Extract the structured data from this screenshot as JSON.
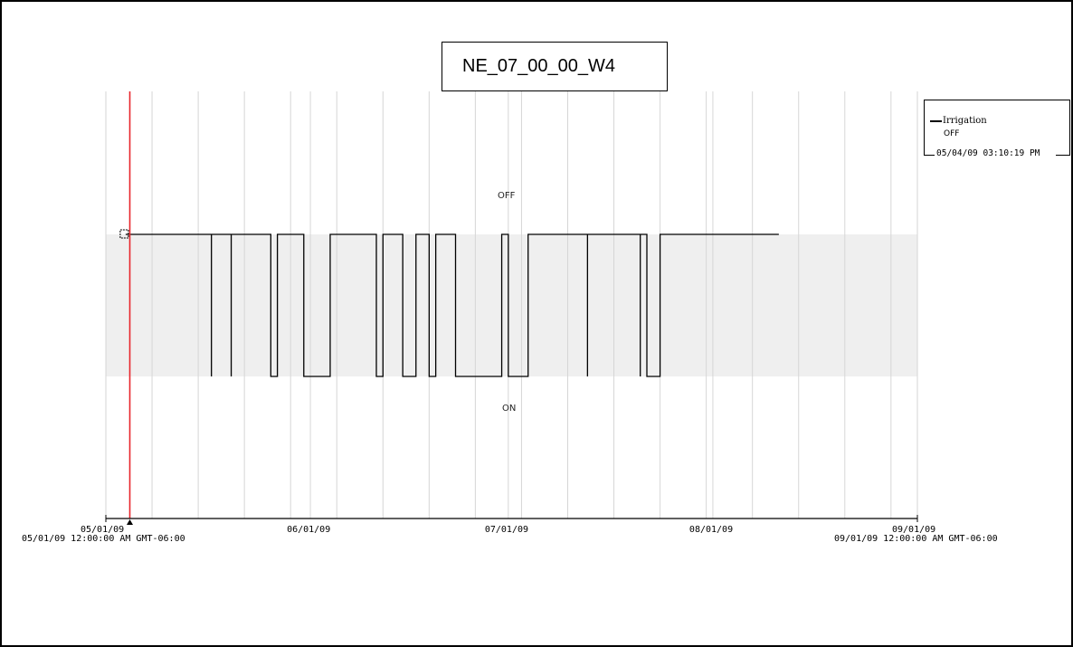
{
  "title": "NE_07_00_00_W4",
  "legend": {
    "series_name": "Irrigation",
    "status": "OFF",
    "timestamp": "05/04/09 03:10:19 PM"
  },
  "state_labels": {
    "off": "OFF",
    "on": "ON"
  },
  "axis": {
    "start_full": "05/01/09 12:00:00 AM GMT-06:00",
    "end_full": "09/01/09 12:00:00 AM GMT-06:00"
  },
  "colors": {
    "series": "#000000",
    "cursor": "#e8262c",
    "band": "#efefef",
    "grid": "#d6d6d6",
    "axis": "#000000"
  },
  "chart_data": {
    "type": "line",
    "step": true,
    "x_axis": {
      "type": "time",
      "min": "2009-05-01",
      "max": "2009-09-01",
      "tick_labels": [
        "05/01/09",
        "06/01/09",
        "07/01/09",
        "08/01/09",
        "09/01/09"
      ]
    },
    "y_axis": {
      "type": "category",
      "categories": [
        "ON",
        "OFF"
      ]
    },
    "cursor_time": "2009-05-04T15:10:19",
    "grid": true,
    "legend_position": "right",
    "series": [
      {
        "name": "Irrigation",
        "points": [
          [
            "2009-05-04",
            "OFF"
          ],
          [
            "2009-05-17",
            "ON"
          ],
          [
            "2009-05-17",
            "OFF"
          ],
          [
            "2009-05-20",
            "ON"
          ],
          [
            "2009-05-20",
            "OFF"
          ],
          [
            "2009-05-26",
            "ON"
          ],
          [
            "2009-05-27",
            "OFF"
          ],
          [
            "2009-05-31",
            "ON"
          ],
          [
            "2009-06-04",
            "OFF"
          ],
          [
            "2009-06-11",
            "ON"
          ],
          [
            "2009-06-12",
            "OFF"
          ],
          [
            "2009-06-15",
            "ON"
          ],
          [
            "2009-06-17",
            "OFF"
          ],
          [
            "2009-06-19",
            "ON"
          ],
          [
            "2009-06-20",
            "OFF"
          ],
          [
            "2009-06-23",
            "ON"
          ],
          [
            "2009-06-30",
            "OFF"
          ],
          [
            "2009-07-01",
            "ON"
          ],
          [
            "2009-07-04",
            "OFF"
          ],
          [
            "2009-07-13",
            "ON"
          ],
          [
            "2009-07-13",
            "OFF"
          ],
          [
            "2009-07-21",
            "ON"
          ],
          [
            "2009-07-21",
            "OFF"
          ],
          [
            "2009-07-22",
            "ON"
          ],
          [
            "2009-07-24",
            "OFF"
          ],
          [
            "2009-08-11",
            "OFF"
          ]
        ]
      }
    ]
  }
}
